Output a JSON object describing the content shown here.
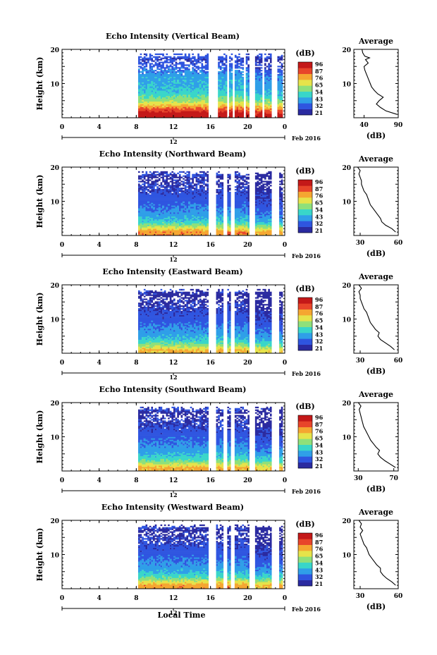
{
  "figure": {
    "date_label": "Feb 2016",
    "bottom_day": "12",
    "xlabel": "Local Time",
    "ylabel": "Height (km)",
    "colorbar_unit": "(dB)",
    "colorbar_ticks": [
      "96",
      "87",
      "76",
      "65",
      "54",
      "43",
      "32",
      "21"
    ],
    "avg_title": "Average",
    "avg_xlabel": "(dB)",
    "color_scale": [
      "#2a2aa0",
      "#2f55e0",
      "#2f9fe8",
      "#39d6c9",
      "#8fe07a",
      "#e6e34a",
      "#f5a631",
      "#e8452a",
      "#c41818"
    ]
  },
  "chart_data": [
    {
      "type": "heatmap",
      "title": "Echo Intensity (Vertical Beam)",
      "x_ticks": [
        "0",
        "4",
        "8",
        "12",
        "16",
        "20",
        "0"
      ],
      "xlim": [
        0,
        24
      ],
      "ylim": [
        0,
        20
      ],
      "y_ticks": [
        "20",
        "10"
      ],
      "data_start_hour": 8.2,
      "gap_hours": [
        [
          15.8,
          16.8
        ],
        [
          17.8,
          18.0
        ],
        [
          18.4,
          18.6
        ],
        [
          19.6,
          19.8
        ],
        [
          20.2,
          20.8
        ],
        [
          21.6,
          21.8
        ],
        [
          22.6,
          23.2
        ],
        [
          23.8,
          24.0
        ]
      ],
      "profile": [
        [
          1,
          95
        ],
        [
          2,
          87
        ],
        [
          3,
          78
        ],
        [
          4,
          68
        ],
        [
          5,
          60
        ],
        [
          6,
          55
        ],
        [
          7,
          50
        ],
        [
          8,
          48
        ],
        [
          9,
          46
        ],
        [
          10,
          45
        ],
        [
          11,
          44
        ],
        [
          12,
          43
        ],
        [
          13,
          40
        ],
        [
          14,
          37
        ],
        [
          15,
          34
        ],
        [
          16,
          32
        ],
        [
          17,
          30
        ],
        [
          18,
          34
        ],
        [
          19,
          32
        ],
        [
          20,
          28
        ]
      ],
      "average": {
        "x_ticks": [
          "40",
          "90"
        ],
        "xlim": [
          25,
          90
        ],
        "profile": [
          [
            1,
            88
          ],
          [
            2,
            72
          ],
          [
            3,
            64
          ],
          [
            4,
            58
          ],
          [
            5,
            62
          ],
          [
            6,
            68
          ],
          [
            7,
            60
          ],
          [
            8,
            55
          ],
          [
            9,
            51
          ],
          [
            10,
            49
          ],
          [
            11,
            47
          ],
          [
            12,
            45
          ],
          [
            13,
            43
          ],
          [
            14,
            41
          ],
          [
            15,
            40
          ],
          [
            16,
            46
          ],
          [
            17,
            42
          ],
          [
            17.5,
            48
          ],
          [
            18,
            41
          ],
          [
            19,
            38
          ],
          [
            20,
            37
          ]
        ]
      }
    },
    {
      "type": "heatmap",
      "title": "Echo Intensity (Northward Beam)",
      "x_ticks": [
        "0",
        "4",
        "8",
        "12",
        "16",
        "20",
        "0"
      ],
      "xlim": [
        0,
        24
      ],
      "ylim": [
        0,
        20
      ],
      "y_ticks": [
        "20",
        "10"
      ],
      "data_start_hour": 8.2,
      "gap_hours": [
        [
          15.8,
          16.6
        ],
        [
          17.4,
          17.7
        ],
        [
          18.2,
          18.6
        ],
        [
          20.2,
          20.7
        ],
        [
          22.6,
          23.3
        ],
        [
          23.8,
          24.0
        ]
      ],
      "profile": [
        [
          1,
          78
        ],
        [
          2,
          68
        ],
        [
          3,
          58
        ],
        [
          4,
          50
        ],
        [
          5,
          45
        ],
        [
          6,
          42
        ],
        [
          7,
          40
        ],
        [
          8,
          38
        ],
        [
          9,
          36
        ],
        [
          10,
          34
        ],
        [
          11,
          33
        ],
        [
          12,
          32
        ],
        [
          13,
          30
        ],
        [
          14,
          29
        ],
        [
          15,
          28
        ],
        [
          16,
          27
        ],
        [
          17,
          26
        ],
        [
          18,
          30
        ],
        [
          19,
          27
        ],
        [
          20,
          25
        ]
      ],
      "average": {
        "x_ticks": [
          "30",
          "60"
        ],
        "xlim": [
          25,
          60
        ],
        "profile": [
          [
            1,
            58
          ],
          [
            2,
            55
          ],
          [
            3,
            50
          ],
          [
            4,
            47
          ],
          [
            5,
            46
          ],
          [
            6,
            44
          ],
          [
            7,
            42
          ],
          [
            8,
            40
          ],
          [
            9,
            38
          ],
          [
            10,
            37
          ],
          [
            11,
            36
          ],
          [
            12,
            35
          ],
          [
            13,
            33
          ],
          [
            14,
            32
          ],
          [
            15,
            31
          ],
          [
            16,
            31
          ],
          [
            17,
            30
          ],
          [
            18,
            29
          ],
          [
            19,
            30
          ],
          [
            20,
            28
          ]
        ]
      }
    },
    {
      "type": "heatmap",
      "title": "Echo Intensity (Eastward Beam)",
      "x_ticks": [
        "0",
        "4",
        "8",
        "12",
        "16",
        "20",
        "0"
      ],
      "xlim": [
        0,
        24
      ],
      "ylim": [
        0,
        20
      ],
      "y_ticks": [
        "20",
        "10"
      ],
      "data_start_hour": 8.2,
      "gap_hours": [
        [
          15.8,
          16.6
        ],
        [
          17.4,
          17.7
        ],
        [
          18.2,
          18.6
        ],
        [
          20.2,
          20.7
        ],
        [
          22.6,
          23.3
        ],
        [
          23.8,
          24.0
        ]
      ],
      "profile": [
        [
          1,
          72
        ],
        [
          2,
          62
        ],
        [
          3,
          54
        ],
        [
          4,
          48
        ],
        [
          5,
          44
        ],
        [
          6,
          41
        ],
        [
          7,
          39
        ],
        [
          8,
          37
        ],
        [
          9,
          35
        ],
        [
          10,
          33
        ],
        [
          11,
          32
        ],
        [
          12,
          31
        ],
        [
          13,
          29
        ],
        [
          14,
          28
        ],
        [
          15,
          27
        ],
        [
          16,
          26
        ],
        [
          17,
          25
        ],
        [
          18,
          29
        ],
        [
          19,
          26
        ],
        [
          20,
          24
        ]
      ],
      "average": {
        "x_ticks": [
          "30",
          "60"
        ],
        "xlim": [
          25,
          60
        ],
        "profile": [
          [
            1,
            57
          ],
          [
            2,
            54
          ],
          [
            3,
            50
          ],
          [
            4,
            46
          ],
          [
            5,
            44
          ],
          [
            6,
            45
          ],
          [
            7,
            42
          ],
          [
            8,
            40
          ],
          [
            9,
            38
          ],
          [
            10,
            37
          ],
          [
            11,
            36
          ],
          [
            12,
            35
          ],
          [
            13,
            33
          ],
          [
            14,
            32
          ],
          [
            15,
            31
          ],
          [
            16,
            30
          ],
          [
            17,
            30
          ],
          [
            18,
            29
          ],
          [
            19,
            31
          ],
          [
            20,
            29
          ]
        ]
      }
    },
    {
      "type": "heatmap",
      "title": "Echo Intensity (Southward Beam)",
      "x_ticks": [
        "0",
        "4",
        "8",
        "12",
        "16",
        "20",
        "0"
      ],
      "xlim": [
        0,
        24
      ],
      "ylim": [
        0,
        20
      ],
      "y_ticks": [
        "20",
        "10"
      ],
      "data_start_hour": 8.2,
      "gap_hours": [
        [
          15.8,
          16.6
        ],
        [
          17.4,
          17.7
        ],
        [
          18.2,
          18.6
        ],
        [
          20.2,
          20.7
        ],
        [
          22.6,
          23.3
        ],
        [
          23.8,
          24.0
        ]
      ],
      "profile": [
        [
          1,
          74
        ],
        [
          2,
          64
        ],
        [
          3,
          55
        ],
        [
          4,
          49
        ],
        [
          5,
          45
        ],
        [
          6,
          42
        ],
        [
          7,
          40
        ],
        [
          8,
          38
        ],
        [
          9,
          36
        ],
        [
          10,
          34
        ],
        [
          11,
          33
        ],
        [
          12,
          32
        ],
        [
          13,
          30
        ],
        [
          14,
          29
        ],
        [
          15,
          28
        ],
        [
          16,
          27
        ],
        [
          17,
          26
        ],
        [
          18,
          30
        ],
        [
          19,
          27
        ],
        [
          20,
          25
        ]
      ],
      "average": {
        "x_ticks": [
          "30",
          "70"
        ],
        "xlim": [
          25,
          75
        ],
        "profile": [
          [
            1,
            72
          ],
          [
            2,
            66
          ],
          [
            3,
            60
          ],
          [
            4,
            55
          ],
          [
            5,
            52
          ],
          [
            6,
            54
          ],
          [
            7,
            50
          ],
          [
            8,
            47
          ],
          [
            9,
            44
          ],
          [
            10,
            42
          ],
          [
            11,
            40
          ],
          [
            12,
            38
          ],
          [
            13,
            36
          ],
          [
            14,
            35
          ],
          [
            15,
            34
          ],
          [
            16,
            33
          ],
          [
            17,
            32
          ],
          [
            18,
            31
          ],
          [
            19,
            33
          ],
          [
            20,
            30
          ]
        ]
      }
    },
    {
      "type": "heatmap",
      "title": "Echo Intensity (Westward Beam)",
      "x_ticks": [
        "0",
        "4",
        "8",
        "12",
        "16",
        "20",
        "0"
      ],
      "xlim": [
        0,
        24
      ],
      "ylim": [
        0,
        20
      ],
      "y_ticks": [
        "20",
        "10"
      ],
      "data_start_hour": 8.2,
      "gap_hours": [
        [
          15.8,
          16.6
        ],
        [
          17.4,
          17.7
        ],
        [
          18.2,
          18.6
        ],
        [
          20.2,
          20.7
        ],
        [
          22.6,
          23.3
        ],
        [
          23.8,
          24.0
        ]
      ],
      "profile": [
        [
          1,
          76
        ],
        [
          2,
          66
        ],
        [
          3,
          56
        ],
        [
          4,
          50
        ],
        [
          5,
          45
        ],
        [
          6,
          42
        ],
        [
          7,
          40
        ],
        [
          8,
          38
        ],
        [
          9,
          36
        ],
        [
          10,
          34
        ],
        [
          11,
          33
        ],
        [
          12,
          32
        ],
        [
          13,
          30
        ],
        [
          14,
          29
        ],
        [
          15,
          28
        ],
        [
          16,
          27
        ],
        [
          17,
          26
        ],
        [
          18,
          30
        ],
        [
          19,
          27
        ],
        [
          20,
          25
        ]
      ],
      "average": {
        "x_ticks": [
          "30",
          "60"
        ],
        "xlim": [
          25,
          60
        ],
        "profile": [
          [
            1,
            58
          ],
          [
            2,
            55
          ],
          [
            3,
            51
          ],
          [
            4,
            48
          ],
          [
            5,
            46
          ],
          [
            6,
            46
          ],
          [
            7,
            43
          ],
          [
            8,
            41
          ],
          [
            9,
            39
          ],
          [
            10,
            37
          ],
          [
            11,
            36
          ],
          [
            12,
            35
          ],
          [
            13,
            33
          ],
          [
            14,
            32
          ],
          [
            15,
            31
          ],
          [
            16,
            30
          ],
          [
            17,
            32
          ],
          [
            18,
            30
          ],
          [
            19,
            31
          ],
          [
            20,
            29
          ]
        ]
      }
    }
  ]
}
